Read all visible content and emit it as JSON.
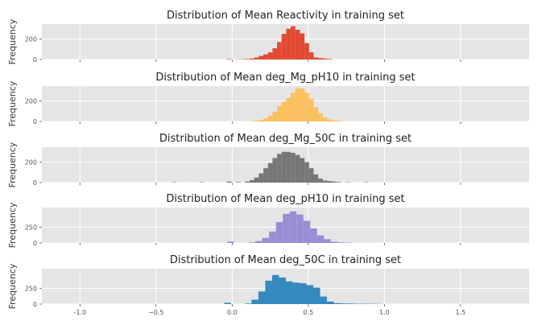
{
  "chart_data": [
    {
      "type": "bar",
      "title": "Distribution of Mean Reactivity in training set",
      "ylabel": "Frequency",
      "xlabel": "",
      "color": "#E24A33",
      "xlim": [
        -1.25,
        1.95
      ],
      "ylim": [
        0,
        345
      ],
      "yticks": [
        0,
        200
      ],
      "bin_width": 0.03,
      "bins": [
        {
          "x": -0.02,
          "y": 5
        },
        {
          "x": 0.04,
          "y": 2
        },
        {
          "x": 0.07,
          "y": 3
        },
        {
          "x": 0.1,
          "y": 5
        },
        {
          "x": 0.13,
          "y": 10
        },
        {
          "x": 0.16,
          "y": 20
        },
        {
          "x": 0.19,
          "y": 35
        },
        {
          "x": 0.22,
          "y": 50
        },
        {
          "x": 0.25,
          "y": 70
        },
        {
          "x": 0.28,
          "y": 110
        },
        {
          "x": 0.31,
          "y": 170
        },
        {
          "x": 0.34,
          "y": 250
        },
        {
          "x": 0.37,
          "y": 300
        },
        {
          "x": 0.4,
          "y": 325
        },
        {
          "x": 0.43,
          "y": 290
        },
        {
          "x": 0.46,
          "y": 255
        },
        {
          "x": 0.49,
          "y": 160
        },
        {
          "x": 0.52,
          "y": 70
        },
        {
          "x": 0.55,
          "y": 20
        },
        {
          "x": 0.58,
          "y": 15
        },
        {
          "x": 0.61,
          "y": 10
        },
        {
          "x": 0.64,
          "y": 5
        }
      ]
    },
    {
      "type": "bar",
      "title": "Distribution of Mean deg_Mg_pH10 in training set",
      "ylabel": "Frequency",
      "xlabel": "",
      "color": "#FBC15E",
      "xlim": [
        -1.25,
        1.95
      ],
      "ylim": [
        0,
        345
      ],
      "yticks": [
        0,
        200
      ],
      "bin_width": 0.03,
      "bins": [
        {
          "x": 0.13,
          "y": 3
        },
        {
          "x": 0.16,
          "y": 8
        },
        {
          "x": 0.19,
          "y": 15
        },
        {
          "x": 0.22,
          "y": 30
        },
        {
          "x": 0.25,
          "y": 55
        },
        {
          "x": 0.28,
          "y": 95
        },
        {
          "x": 0.31,
          "y": 150
        },
        {
          "x": 0.34,
          "y": 190
        },
        {
          "x": 0.37,
          "y": 230
        },
        {
          "x": 0.4,
          "y": 280
        },
        {
          "x": 0.43,
          "y": 325
        },
        {
          "x": 0.46,
          "y": 320
        },
        {
          "x": 0.49,
          "y": 280
        },
        {
          "x": 0.52,
          "y": 220
        },
        {
          "x": 0.55,
          "y": 140
        },
        {
          "x": 0.58,
          "y": 80
        },
        {
          "x": 0.61,
          "y": 40
        },
        {
          "x": 0.64,
          "y": 20
        },
        {
          "x": 0.67,
          "y": 10
        },
        {
          "x": 0.7,
          "y": 5
        },
        {
          "x": 0.73,
          "y": 2
        }
      ]
    },
    {
      "type": "bar",
      "title": "Distribution of Mean deg_Mg_50C in training set",
      "ylabel": "Frequency",
      "xlabel": "",
      "color": "#777777",
      "xlim": [
        -1.25,
        1.95
      ],
      "ylim": [
        0,
        345
      ],
      "yticks": [
        0,
        200
      ],
      "bin_width": 0.03,
      "bins": [
        {
          "x": -0.38,
          "y": 3
        },
        {
          "x": -0.2,
          "y": 3
        },
        {
          "x": -0.02,
          "y": 10
        },
        {
          "x": 0.04,
          "y": 5
        },
        {
          "x": 0.1,
          "y": 10
        },
        {
          "x": 0.13,
          "y": 25
        },
        {
          "x": 0.16,
          "y": 50
        },
        {
          "x": 0.19,
          "y": 90
        },
        {
          "x": 0.22,
          "y": 140
        },
        {
          "x": 0.25,
          "y": 190
        },
        {
          "x": 0.28,
          "y": 240
        },
        {
          "x": 0.31,
          "y": 280
        },
        {
          "x": 0.34,
          "y": 300
        },
        {
          "x": 0.37,
          "y": 300
        },
        {
          "x": 0.4,
          "y": 290
        },
        {
          "x": 0.43,
          "y": 270
        },
        {
          "x": 0.46,
          "y": 240
        },
        {
          "x": 0.49,
          "y": 200
        },
        {
          "x": 0.52,
          "y": 140
        },
        {
          "x": 0.55,
          "y": 80
        },
        {
          "x": 0.58,
          "y": 40
        },
        {
          "x": 0.61,
          "y": 20
        },
        {
          "x": 0.64,
          "y": 15
        },
        {
          "x": 0.67,
          "y": 10
        },
        {
          "x": 0.7,
          "y": 5
        },
        {
          "x": 0.76,
          "y": 3
        },
        {
          "x": 0.88,
          "y": 3
        }
      ]
    },
    {
      "type": "bar",
      "title": "Distribution of Mean deg_pH10 in training set",
      "ylabel": "Frequency",
      "xlabel": "",
      "color": "#988ED5",
      "xlim": [
        -1.25,
        1.95
      ],
      "ylim": [
        0,
        560
      ],
      "yticks": [
        0,
        250
      ],
      "bin_width": 0.045,
      "bins": [
        {
          "x": -0.01,
          "y": 20
        },
        {
          "x": 0.13,
          "y": 8
        },
        {
          "x": 0.175,
          "y": 30
        },
        {
          "x": 0.22,
          "y": 80
        },
        {
          "x": 0.265,
          "y": 180
        },
        {
          "x": 0.31,
          "y": 330
        },
        {
          "x": 0.355,
          "y": 460
        },
        {
          "x": 0.4,
          "y": 500
        },
        {
          "x": 0.445,
          "y": 450
        },
        {
          "x": 0.49,
          "y": 350
        },
        {
          "x": 0.535,
          "y": 230
        },
        {
          "x": 0.58,
          "y": 120
        },
        {
          "x": 0.625,
          "y": 60
        },
        {
          "x": 0.67,
          "y": 20
        },
        {
          "x": 0.715,
          "y": 10
        },
        {
          "x": 0.76,
          "y": 5
        }
      ]
    },
    {
      "type": "bar",
      "title": "Distribution of Mean deg_50C in training set",
      "ylabel": "Frequency",
      "xlabel": "",
      "color": "#348ABD",
      "xlim": [
        -1.25,
        1.95
      ],
      "ylim": [
        0,
        560
      ],
      "yticks": [
        0,
        250
      ],
      "xticks": [
        -1.0,
        -0.5,
        0.0,
        0.5,
        1.0,
        1.5
      ],
      "xticklabels": [
        "-1.0",
        "−0.5",
        "0.0",
        "0.5",
        "1.0",
        "1.5"
      ],
      "bin_width": 0.045,
      "bins": [
        {
          "x": -0.03,
          "y": 20
        },
        {
          "x": 0.105,
          "y": 8
        },
        {
          "x": 0.15,
          "y": 70
        },
        {
          "x": 0.195,
          "y": 200
        },
        {
          "x": 0.24,
          "y": 370
        },
        {
          "x": 0.285,
          "y": 460
        },
        {
          "x": 0.33,
          "y": 420
        },
        {
          "x": 0.375,
          "y": 360
        },
        {
          "x": 0.42,
          "y": 340
        },
        {
          "x": 0.465,
          "y": 330
        },
        {
          "x": 0.51,
          "y": 300
        },
        {
          "x": 0.555,
          "y": 260
        },
        {
          "x": 0.6,
          "y": 120
        },
        {
          "x": 0.645,
          "y": 40
        },
        {
          "x": 0.69,
          "y": 15
        },
        {
          "x": 0.735,
          "y": 10
        },
        {
          "x": 0.78,
          "y": 8
        },
        {
          "x": 0.825,
          "y": 5
        },
        {
          "x": 0.87,
          "y": 5
        },
        {
          "x": 0.915,
          "y": 5
        },
        {
          "x": 0.96,
          "y": 3
        }
      ]
    }
  ]
}
